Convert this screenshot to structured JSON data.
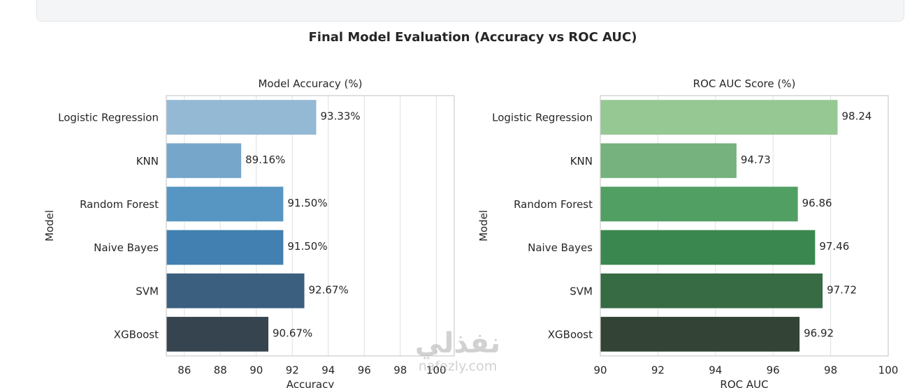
{
  "figure": {
    "title": "Final Model Evaluation (Accuracy vs ROC AUC)",
    "code_fragment": "}"
  },
  "watermark": {
    "arabic": "نفذلي",
    "latin": "nafezly.com"
  },
  "chart_data": [
    {
      "type": "bar",
      "orientation": "horizontal",
      "title": "Model Accuracy (%)",
      "xlabel": "Accuracy",
      "ylabel": "Model",
      "categories": [
        "Logistic Regression",
        "KNN",
        "Random Forest",
        "Naive Bayes",
        "SVM",
        "XGBoost"
      ],
      "values": [
        93.33,
        89.16,
        91.5,
        91.5,
        92.67,
        90.67
      ],
      "value_labels": [
        "93.33%",
        "89.16%",
        "91.50%",
        "91.50%",
        "92.67%",
        "90.67%"
      ],
      "xlim": [
        85,
        101
      ],
      "xticks": [
        86,
        88,
        90,
        92,
        94,
        96,
        98,
        100
      ],
      "grid": true,
      "colors": [
        "#93b9d5",
        "#76a7cb",
        "#5796c2",
        "#4180b0",
        "#3a5f7f",
        "#36444f"
      ]
    },
    {
      "type": "bar",
      "orientation": "horizontal",
      "title": "ROC AUC Score (%)",
      "xlabel": "ROC AUC",
      "ylabel": "Model",
      "categories": [
        "Logistic Regression",
        "KNN",
        "Random Forest",
        "Naive Bayes",
        "SVM",
        "XGBoost"
      ],
      "values": [
        98.24,
        94.73,
        96.86,
        97.46,
        97.72,
        96.92
      ],
      "value_labels": [
        "98.24",
        "94.73",
        "96.86",
        "97.46",
        "97.72",
        "96.92"
      ],
      "xlim": [
        90,
        100
      ],
      "xticks": [
        90,
        92,
        94,
        96,
        98,
        100
      ],
      "grid": true,
      "colors": [
        "#95c893",
        "#75b27d",
        "#529f64",
        "#3a8850",
        "#366b44",
        "#334436"
      ]
    }
  ]
}
